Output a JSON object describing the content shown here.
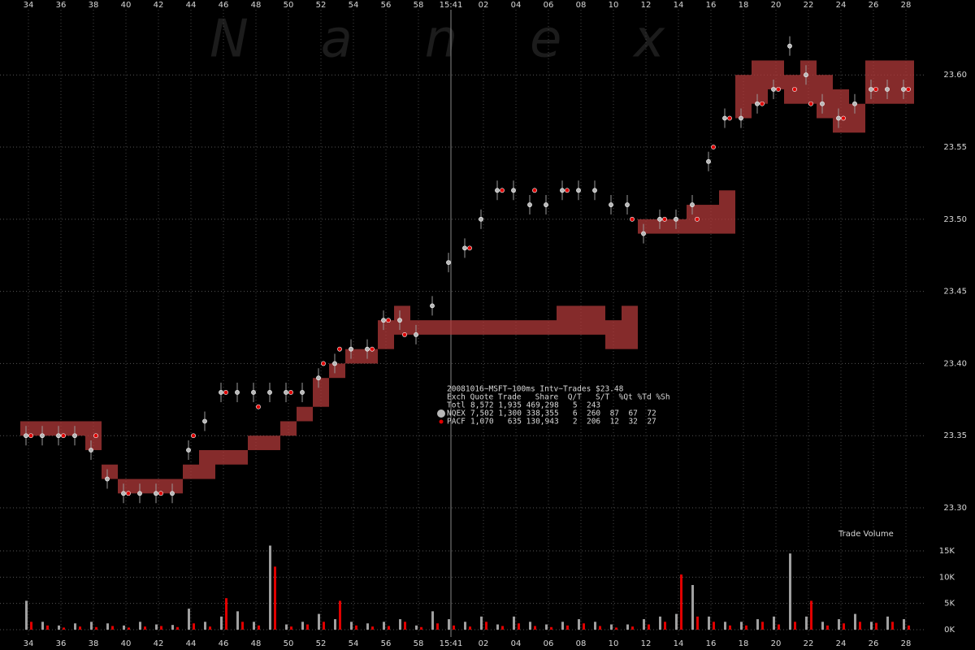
{
  "watermark": "N a n e x",
  "chart_data": [
    {
      "type": "scatter",
      "title": "20081016~MSFT~100ms Intv~Trades $23.48",
      "legend_header": "Exch Quote Trade   Share  Q/T   S/T  %Qt %Td %Sh",
      "totals_label": "Totl",
      "totals": "8,572 1,935 469,298   5  243",
      "x": [
        34,
        35,
        36,
        37,
        38,
        39,
        40,
        41,
        42,
        43,
        44,
        45,
        46,
        47,
        48,
        49,
        50,
        51,
        52,
        53,
        54,
        55,
        56,
        57,
        58,
        59,
        60,
        61,
        62,
        63,
        64,
        65,
        66,
        67,
        68,
        69,
        70,
        71,
        72,
        73,
        74,
        75,
        76,
        77,
        78,
        79,
        80,
        81,
        82,
        83,
        84,
        85,
        86,
        87,
        88
      ],
      "xlim": [
        32.25,
        89.25
      ],
      "xticks": [
        34,
        36,
        38,
        40,
        42,
        44,
        46,
        48,
        50,
        52,
        54,
        56,
        58,
        {
          "value": 60,
          "label": "15:41"
        },
        {
          "value": 62,
          "label": "02"
        },
        {
          "value": 64,
          "label": "04"
        },
        {
          "value": 66,
          "label": "06"
        },
        {
          "value": 68,
          "label": "08"
        },
        {
          "value": 70,
          "label": "10"
        },
        {
          "value": 72,
          "label": "12"
        },
        {
          "value": 74,
          "label": "14"
        },
        {
          "value": 76,
          "label": "16"
        },
        {
          "value": 78,
          "label": "18"
        },
        {
          "value": 80,
          "label": "20"
        },
        {
          "value": 82,
          "label": "22"
        },
        {
          "value": 84,
          "label": "24"
        },
        {
          "value": 86,
          "label": "26"
        },
        {
          "value": 88,
          "label": "28"
        }
      ],
      "ylim": [
        23.29,
        23.65
      ],
      "yticks": [
        {
          "value": 23.3,
          "label": "23.30"
        },
        {
          "value": 23.35,
          "label": "23.35"
        },
        {
          "value": 23.4,
          "label": "23.40"
        },
        {
          "value": 23.45,
          "label": "23.45"
        },
        {
          "value": 23.5,
          "label": "23.50"
        },
        {
          "value": 23.55,
          "label": "23.55"
        },
        {
          "value": 23.6,
          "label": "23.60"
        }
      ],
      "grid": true,
      "series": [
        {
          "name": "NQEX",
          "color": "#b8b8b8",
          "stats": "7,502 1,300 338,355   6  260  87  67  72",
          "values": [
            23.35,
            23.35,
            23.35,
            23.35,
            23.34,
            23.32,
            23.31,
            23.31,
            23.31,
            23.31,
            23.34,
            23.36,
            23.38,
            23.38,
            23.38,
            23.38,
            23.38,
            23.38,
            23.39,
            23.4,
            23.41,
            23.41,
            23.43,
            23.43,
            23.42,
            23.44,
            23.47,
            23.48,
            23.5,
            23.52,
            23.52,
            23.51,
            23.51,
            23.52,
            23.52,
            23.52,
            23.51,
            23.51,
            23.49,
            23.5,
            23.5,
            23.51,
            23.54,
            23.57,
            23.57,
            23.58,
            23.59,
            23.62,
            23.6,
            23.58,
            23.57,
            23.58,
            23.59,
            23.59,
            23.59
          ]
        },
        {
          "name": "PACF",
          "color": "#e00000",
          "band_color": "#b23a3a",
          "stats": "1,070   635 130,943   2  206  12  32  27",
          "values": [
            23.35,
            null,
            23.35,
            null,
            23.35,
            null,
            23.31,
            null,
            23.31,
            null,
            23.35,
            null,
            23.38,
            null,
            23.37,
            null,
            23.38,
            null,
            23.4,
            23.41,
            null,
            23.41,
            23.43,
            23.42,
            null,
            null,
            null,
            23.48,
            null,
            23.52,
            null,
            23.52,
            null,
            23.52,
            null,
            null,
            null,
            23.5,
            null,
            23.5,
            null,
            23.5,
            23.55,
            23.57,
            null,
            23.58,
            23.59,
            23.59,
            23.58,
            null,
            23.57,
            null,
            23.59,
            null,
            23.59
          ],
          "bid": [
            23.35,
            23.35,
            23.35,
            23.35,
            23.34,
            23.32,
            23.31,
            23.31,
            23.31,
            23.31,
            23.32,
            23.32,
            23.33,
            23.33,
            23.34,
            23.34,
            23.35,
            23.36,
            23.37,
            23.39,
            23.4,
            23.4,
            23.41,
            23.42,
            23.42,
            23.42,
            23.42,
            23.42,
            23.42,
            23.42,
            23.42,
            23.42,
            23.42,
            23.42,
            23.42,
            23.42,
            23.41,
            23.41,
            23.49,
            23.49,
            23.49,
            23.49,
            23.49,
            23.49,
            23.57,
            23.58,
            23.59,
            23.58,
            23.58,
            23.57,
            23.56,
            23.56,
            23.58,
            23.58,
            23.58
          ],
          "ask": [
            23.36,
            23.36,
            23.36,
            23.36,
            23.36,
            23.33,
            23.32,
            23.32,
            23.32,
            23.32,
            23.33,
            23.34,
            23.34,
            23.34,
            23.35,
            23.35,
            23.36,
            23.37,
            23.39,
            23.4,
            23.41,
            23.41,
            23.43,
            23.44,
            23.43,
            23.43,
            23.43,
            23.43,
            23.43,
            23.43,
            23.43,
            23.43,
            23.43,
            23.44,
            23.44,
            23.44,
            23.43,
            23.44,
            23.5,
            23.5,
            23.5,
            23.51,
            23.51,
            23.52,
            23.6,
            23.61,
            23.61,
            23.6,
            23.61,
            23.6,
            23.59,
            23.58,
            23.61,
            23.61,
            23.61
          ]
        }
      ]
    },
    {
      "type": "bar",
      "title": "Trade Volume",
      "x": [
        34,
        35,
        36,
        37,
        38,
        39,
        40,
        41,
        42,
        43,
        44,
        45,
        46,
        47,
        48,
        49,
        50,
        51,
        52,
        53,
        54,
        55,
        56,
        57,
        58,
        59,
        60,
        61,
        62,
        63,
        64,
        65,
        66,
        67,
        68,
        69,
        70,
        71,
        72,
        73,
        74,
        75,
        76,
        77,
        78,
        79,
        80,
        81,
        82,
        83,
        84,
        85,
        86,
        87,
        88
      ],
      "xlim": [
        32.25,
        89.25
      ],
      "ylim": [
        0,
        16000
      ],
      "yticks": [
        {
          "value": 0,
          "label": "0K"
        },
        {
          "value": 5000,
          "label": "5K"
        },
        {
          "value": 10000,
          "label": "10K"
        },
        {
          "value": 15000,
          "label": "15K"
        }
      ],
      "grid": true,
      "series": [
        {
          "name": "NQEX",
          "color": "#a0a0a0",
          "values": [
            5500,
            1500,
            800,
            1200,
            1500,
            1200,
            800,
            1500,
            1000,
            900,
            4000,
            1500,
            2500,
            3500,
            1500,
            16000,
            1000,
            1500,
            3000,
            2000,
            1500,
            1200,
            1500,
            2000,
            800,
            3500,
            2000,
            1500,
            2500,
            1000,
            2500,
            1500,
            1000,
            1500,
            2000,
            1500,
            1000,
            1000,
            2000,
            2500,
            3000,
            8500,
            2500,
            1500,
            1500,
            2000,
            2500,
            14500,
            2500,
            1500,
            2000,
            3000,
            1500,
            2500,
            2000
          ]
        },
        {
          "name": "PACF",
          "color": "#e00000",
          "values": [
            1500,
            800,
            400,
            600,
            500,
            700,
            400,
            600,
            700,
            500,
            1200,
            600,
            6000,
            1500,
            800,
            12000,
            600,
            1000,
            1500,
            5500,
            800,
            600,
            700,
            1500,
            500,
            1200,
            800,
            600,
            1500,
            700,
            1200,
            700,
            500,
            800,
            1200,
            700,
            400,
            600,
            1000,
            1500,
            10500,
            2500,
            1500,
            800,
            800,
            1500,
            1000,
            1500,
            5500,
            800,
            1200,
            1500,
            1300,
            1500,
            800
          ]
        }
      ]
    }
  ]
}
